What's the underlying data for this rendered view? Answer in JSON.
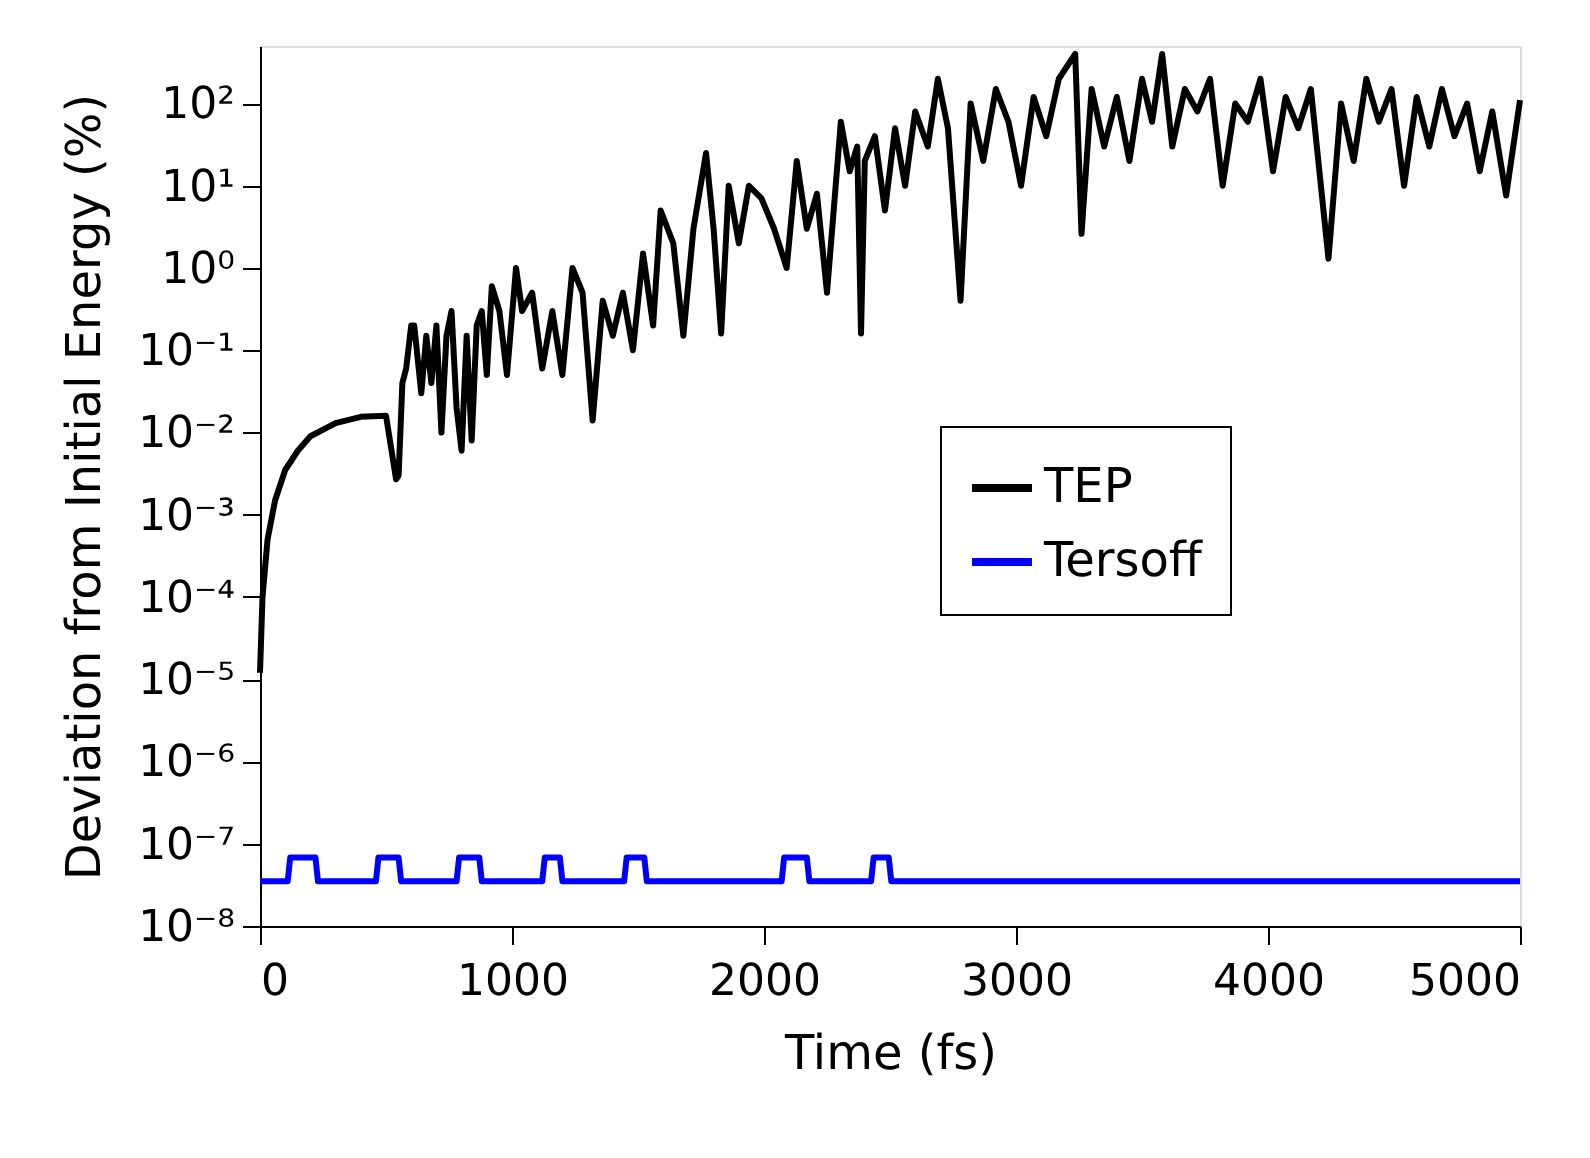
{
  "chart_data": {
    "type": "line",
    "xlabel": "Time (fs)",
    "ylabel": "Deviation from Initial Energy (%)",
    "log": "y",
    "grid": false,
    "legend": "right",
    "line_style": "solid",
    "marker": "none",
    "xlim": [
      0,
      5000
    ],
    "xticks": [
      0,
      1000,
      2000,
      3000,
      4000,
      5000
    ],
    "ylim": [
      1e-08,
      500
    ],
    "yticks": [
      {
        "value": 1e-08,
        "label": "10⁻⁸"
      },
      {
        "value": 1e-07,
        "label": "10⁻⁷"
      },
      {
        "value": 1e-06,
        "label": "10⁻⁶"
      },
      {
        "value": 1e-05,
        "label": "10⁻⁵"
      },
      {
        "value": 0.0001,
        "label": "10⁻⁴"
      },
      {
        "value": 0.001,
        "label": "10⁻³"
      },
      {
        "value": 0.01,
        "label": "10⁻²"
      },
      {
        "value": 0.1,
        "label": "10⁻¹"
      },
      {
        "value": 1,
        "label": "10⁰"
      },
      {
        "value": 10,
        "label": "10¹"
      },
      {
        "value": 100,
        "label": "10²"
      }
    ],
    "series": [
      {
        "name": "TEP",
        "color": "#000000",
        "x": [
          0,
          10,
          30,
          60,
          100,
          150,
          200,
          300,
          400,
          500,
          540,
          550,
          565,
          580,
          600,
          612,
          640,
          660,
          680,
          700,
          720,
          740,
          760,
          780,
          800,
          820,
          840,
          860,
          880,
          900,
          920,
          950,
          980,
          1016,
          1040,
          1080,
          1120,
          1160,
          1200,
          1240,
          1280,
          1320,
          1360,
          1400,
          1440,
          1480,
          1520,
          1560,
          1590,
          1640,
          1680,
          1720,
          1770,
          1800,
          1830,
          1860,
          1900,
          1940,
          1990,
          2040,
          2090,
          2130,
          2170,
          2210,
          2250,
          2305,
          2340,
          2370,
          2385,
          2400,
          2440,
          2480,
          2520,
          2560,
          2600,
          2650,
          2690,
          2730,
          2780,
          2820,
          2870,
          2920,
          2970,
          3020,
          3070,
          3120,
          3170,
          3235,
          3260,
          3300,
          3350,
          3400,
          3450,
          3500,
          3540,
          3580,
          3620,
          3670,
          3720,
          3770,
          3820,
          3870,
          3920,
          3970,
          4020,
          4070,
          4120,
          4170,
          4240,
          4290,
          4340,
          4390,
          4440,
          4490,
          4540,
          4590,
          4640,
          4690,
          4740,
          4790,
          4840,
          4890,
          4945,
          5000
        ],
        "values": [
          1.2e-05,
          0.0001,
          0.0005,
          0.0015,
          0.0035,
          0.006,
          0.009,
          0.013,
          0.0155,
          0.016,
          0.0027,
          0.003,
          0.04,
          0.06,
          0.2,
          0.2,
          0.03,
          0.15,
          0.04,
          0.2,
          0.01,
          0.15,
          0.3,
          0.02,
          0.006,
          0.15,
          0.008,
          0.2,
          0.3,
          0.05,
          0.6,
          0.3,
          0.05,
          1,
          0.3,
          0.5,
          0.06,
          0.3,
          0.05,
          1,
          0.5,
          0.014,
          0.4,
          0.15,
          0.5,
          0.1,
          1.5,
          0.2,
          5,
          2,
          0.15,
          3,
          25,
          3,
          0.16,
          10,
          2,
          10,
          7,
          3,
          1,
          20,
          3,
          8,
          0.5,
          60,
          15,
          30,
          0.16,
          20,
          40,
          5,
          50,
          10,
          80,
          30,
          200,
          50,
          0.4,
          100,
          20,
          150,
          60,
          10,
          120,
          40,
          200,
          400,
          2.6,
          150,
          30,
          120,
          20,
          200,
          60,
          400,
          30,
          150,
          80,
          200,
          10,
          100,
          60,
          200,
          15,
          120,
          50,
          150,
          1.3,
          100,
          20,
          200,
          60,
          150,
          10,
          120,
          30,
          150,
          40,
          100,
          15,
          80,
          7.6,
          110
        ]
      },
      {
        "name": "Tersoff",
        "color": "#0000ff",
        "x": [
          0,
          110,
          120,
          220,
          230,
          460,
          470,
          550,
          560,
          780,
          790,
          870,
          880,
          1120,
          1130,
          1190,
          1200,
          1445,
          1455,
          1525,
          1535,
          2070,
          2080,
          2170,
          2180,
          2425,
          2435,
          2495,
          2505,
          5000
        ],
        "values": [
          3.5e-08,
          3.5e-08,
          6.8e-08,
          6.8e-08,
          3.5e-08,
          3.5e-08,
          6.8e-08,
          6.8e-08,
          3.5e-08,
          3.5e-08,
          6.8e-08,
          6.8e-08,
          3.5e-08,
          3.5e-08,
          6.8e-08,
          6.8e-08,
          3.5e-08,
          3.5e-08,
          6.8e-08,
          6.8e-08,
          3.5e-08,
          3.5e-08,
          6.8e-08,
          6.8e-08,
          3.5e-08,
          3.5e-08,
          6.8e-08,
          6.8e-08,
          3.5e-08,
          3.5e-08
        ]
      }
    ]
  }
}
